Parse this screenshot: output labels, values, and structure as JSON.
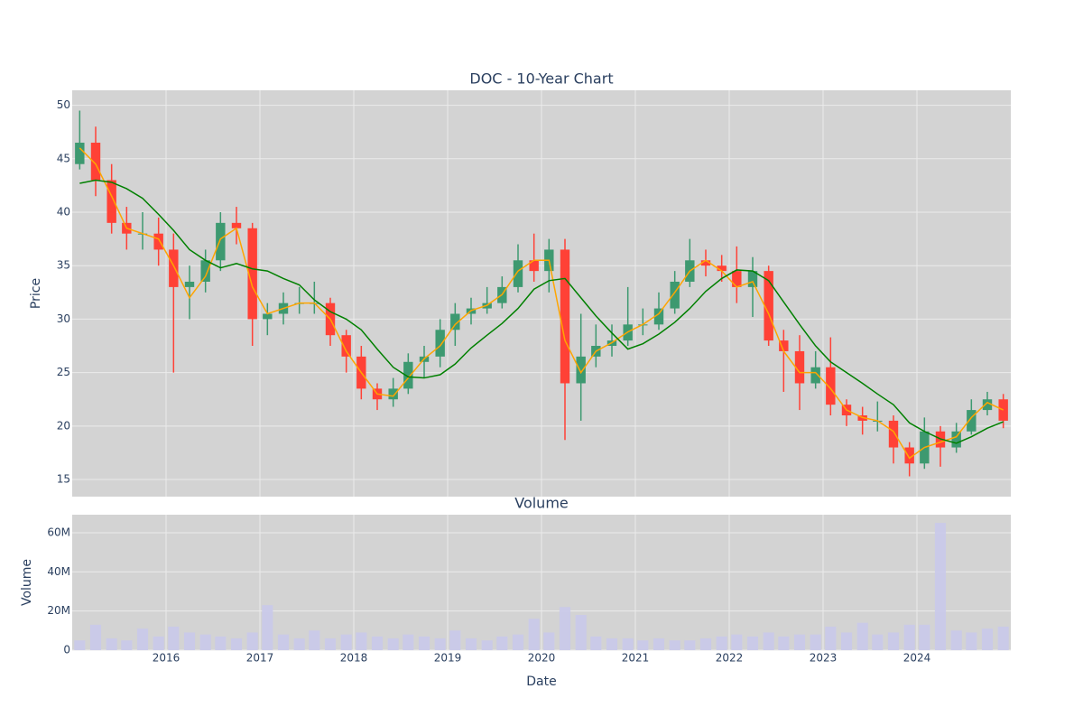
{
  "chart_data": [
    {
      "type": "candlestick",
      "title": "DOC - 10-Year Chart",
      "y_label": "Price",
      "x": [
        2015.08,
        2015.25,
        2015.42,
        2015.58,
        2015.75,
        2015.92,
        2016.08,
        2016.25,
        2016.42,
        2016.58,
        2016.75,
        2016.92,
        2017.08,
        2017.25,
        2017.42,
        2017.58,
        2017.75,
        2017.92,
        2018.08,
        2018.25,
        2018.42,
        2018.58,
        2018.75,
        2018.92,
        2019.08,
        2019.25,
        2019.42,
        2019.58,
        2019.75,
        2019.92,
        2020.08,
        2020.25,
        2020.42,
        2020.58,
        2020.75,
        2020.92,
        2021.08,
        2021.25,
        2021.42,
        2021.58,
        2021.75,
        2021.92,
        2022.08,
        2022.25,
        2022.42,
        2022.58,
        2022.75,
        2022.92,
        2023.08,
        2023.25,
        2023.42,
        2023.58,
        2023.75,
        2023.92,
        2024.08,
        2024.25,
        2024.42,
        2024.58,
        2024.75,
        2024.92
      ],
      "open": [
        44.5,
        46.5,
        43,
        39,
        38,
        38,
        36.5,
        33,
        33.5,
        35.5,
        39,
        38.5,
        30,
        30.5,
        31.5,
        31.5,
        31.5,
        28.5,
        26.5,
        23.5,
        22.5,
        23.5,
        26,
        26.5,
        29,
        30.5,
        31,
        31.5,
        33,
        35.5,
        34.5,
        36.5,
        24,
        26.5,
        27.5,
        28,
        29.5,
        29.5,
        31,
        33.5,
        35.5,
        35,
        34.5,
        33,
        34.5,
        28,
        27,
        24,
        25.5,
        22,
        21,
        20.5,
        20.5,
        18,
        16.5,
        19.5,
        18,
        19.5,
        21.5,
        22.5
      ],
      "high": [
        49.5,
        48,
        44.5,
        40.5,
        40,
        39.5,
        38,
        35,
        36.5,
        40,
        40.5,
        39,
        31.5,
        32.5,
        33,
        33.5,
        32,
        29,
        27.5,
        24,
        24.5,
        26.8,
        27.5,
        30,
        31.5,
        32,
        33,
        34,
        37,
        38,
        37.5,
        37.5,
        30.5,
        29.5,
        29.5,
        33,
        31,
        32.5,
        34.5,
        37.5,
        36.5,
        36,
        36.8,
        35.8,
        35,
        29,
        28.5,
        27,
        28.3,
        22.5,
        21.8,
        22.3,
        21,
        18.5,
        20.8,
        20,
        20.3,
        22.5,
        23.2,
        23
      ],
      "low": [
        44,
        41.5,
        38,
        36.5,
        36.5,
        35,
        25,
        30,
        32.5,
        34.5,
        37,
        27.5,
        28.5,
        29.5,
        30.5,
        30.5,
        27.5,
        25,
        22.5,
        21.5,
        21.8,
        23,
        24.5,
        25.5,
        27.5,
        29.5,
        30.5,
        31,
        32.5,
        33.5,
        32.5,
        18.7,
        20.5,
        25.5,
        26.5,
        27.5,
        28.5,
        29,
        30.5,
        33,
        34,
        33.5,
        31.5,
        30.2,
        27.5,
        23.2,
        21.5,
        23.5,
        21,
        20,
        19.2,
        19.5,
        16.5,
        15.3,
        16,
        16.2,
        17.5,
        19.2,
        21,
        19.8
      ],
      "close": [
        46.5,
        43,
        39,
        38,
        38,
        36.5,
        33,
        33.5,
        35.5,
        39,
        38.5,
        30,
        30.5,
        31.5,
        31.5,
        31.5,
        28.5,
        26.5,
        23.5,
        22.5,
        23.5,
        26,
        26.5,
        29,
        30.5,
        31,
        31.5,
        33,
        35.5,
        34.5,
        36.5,
        24,
        26.5,
        27.5,
        28,
        29.5,
        29.5,
        31,
        33.5,
        35.5,
        35,
        34.5,
        33,
        34.5,
        28,
        27,
        24,
        25.5,
        22,
        21,
        20.5,
        20.5,
        18,
        16.5,
        19.5,
        18,
        19.5,
        21.5,
        22.5,
        20.5
      ],
      "increasing_color": "#3d9970",
      "decreasing_color": "#ff4136",
      "overlays": [
        {
          "color": "orange",
          "values": [
            46,
            44.5,
            41.5,
            38.5,
            38,
            37.5,
            35,
            32,
            34,
            37.5,
            38.5,
            33,
            30.5,
            31,
            31.5,
            31.5,
            30,
            27,
            25,
            23,
            22.8,
            24.5,
            26.3,
            27.5,
            29.5,
            30.8,
            31.3,
            32.3,
            34.5,
            35.5,
            35.5,
            28,
            25,
            27,
            27.8,
            28.8,
            29.5,
            30.5,
            32.5,
            34.5,
            35.5,
            34.5,
            33,
            33.5,
            30.5,
            27,
            25,
            25,
            23.5,
            21.5,
            20.8,
            20.5,
            19.5,
            17,
            18,
            18.5,
            19,
            20.8,
            22.2,
            21.5
          ]
        },
        {
          "color": "green",
          "values": [
            42.7,
            43,
            42.8,
            42.2,
            41.3,
            39.8,
            38.3,
            36.5,
            35.5,
            34.8,
            35.2,
            34.7,
            34.5,
            33.8,
            33.2,
            31.8,
            30.7,
            30,
            29,
            27.2,
            25.5,
            24.6,
            24.5,
            24.8,
            25.8,
            27.3,
            28.5,
            29.6,
            31,
            32.8,
            33.6,
            33.8,
            32,
            30.3,
            28.7,
            27.2,
            27.7,
            28.6,
            29.7,
            31,
            32.6,
            33.8,
            34.6,
            34.5,
            33.6,
            31.6,
            29.5,
            27.5,
            26,
            25,
            24,
            23,
            22,
            20.3,
            19.5,
            18.8,
            18.4,
            19,
            19.8,
            20.4
          ]
        }
      ],
      "xlim": [
        2015.0,
        2025.0
      ],
      "ylim": [
        13.4,
        51.4
      ],
      "yticks": [
        15,
        20,
        25,
        30,
        35,
        40,
        45,
        50
      ],
      "grid": true
    },
    {
      "type": "bar",
      "title": "Volume",
      "y_label": "Volume",
      "x_label": "Date",
      "x": [
        2015.08,
        2015.25,
        2015.42,
        2015.58,
        2015.75,
        2015.92,
        2016.08,
        2016.25,
        2016.42,
        2016.58,
        2016.75,
        2016.92,
        2017.08,
        2017.25,
        2017.42,
        2017.58,
        2017.75,
        2017.92,
        2018.08,
        2018.25,
        2018.42,
        2018.58,
        2018.75,
        2018.92,
        2019.08,
        2019.25,
        2019.42,
        2019.58,
        2019.75,
        2019.92,
        2020.08,
        2020.25,
        2020.42,
        2020.58,
        2020.75,
        2020.92,
        2021.08,
        2021.25,
        2021.42,
        2021.58,
        2021.75,
        2021.92,
        2022.08,
        2022.25,
        2022.42,
        2022.58,
        2022.75,
        2022.92,
        2023.08,
        2023.25,
        2023.42,
        2023.58,
        2023.75,
        2023.92,
        2024.08,
        2024.25,
        2024.42,
        2024.58,
        2024.75,
        2024.92
      ],
      "values": [
        5000000,
        13000000,
        6000000,
        5000000,
        11000000,
        7000000,
        12000000,
        9000000,
        8000000,
        7000000,
        6000000,
        9000000,
        23000000,
        8000000,
        6000000,
        10000000,
        6000000,
        8000000,
        9000000,
        7000000,
        6000000,
        8000000,
        7000000,
        6000000,
        10000000,
        6000000,
        5000000,
        7000000,
        8000000,
        16000000,
        9000000,
        22000000,
        18000000,
        7000000,
        6000000,
        6000000,
        5000000,
        6000000,
        5000000,
        5000000,
        6000000,
        7000000,
        8000000,
        7000000,
        9000000,
        7000000,
        8000000,
        8000000,
        12000000,
        9000000,
        14000000,
        8000000,
        9000000,
        13000000,
        13000000,
        65000000,
        10000000,
        9000000,
        11000000,
        12000000
      ],
      "color": "#c9c9ea",
      "xlim": [
        2015.0,
        2025.0
      ],
      "ylim": [
        0,
        69200000
      ],
      "yticks": [
        0,
        {
          "value": 20000000,
          "label": "20M"
        },
        {
          "value": 40000000,
          "label": "40M"
        },
        {
          "value": 60000000,
          "label": "60M"
        }
      ],
      "xticks": [
        2016,
        2017,
        2018,
        2019,
        2020,
        2021,
        2022,
        2023,
        2024
      ],
      "grid": true
    }
  ]
}
